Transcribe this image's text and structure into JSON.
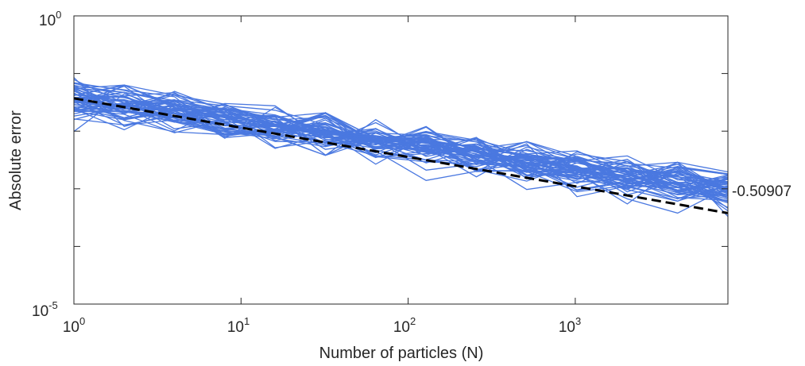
{
  "chart_data": {
    "type": "line",
    "xlabel": "Number of particles (N)",
    "ylabel": "Absolute error",
    "xscale": "log",
    "yscale": "log",
    "xlim": [
      1,
      8192
    ],
    "ylim": [
      1e-05,
      1
    ],
    "x": [
      1,
      2,
      4,
      8,
      16,
      32,
      64,
      128,
      256,
      512,
      1024,
      2048,
      4096,
      8192
    ],
    "xticks": [
      {
        "base": "10",
        "exp": "0",
        "value": 1
      },
      {
        "base": "10",
        "exp": "1",
        "value": 10
      },
      {
        "base": "10",
        "exp": "2",
        "value": 100
      },
      {
        "base": "10",
        "exp": "3",
        "value": 1000
      }
    ],
    "yticks": [
      {
        "base": "10",
        "exp": "0",
        "value": 1
      },
      {
        "base": "10",
        "exp": "-5",
        "value": 1e-05
      }
    ],
    "trial_series": {
      "color": "#4a78e0",
      "count": 60,
      "center_log10": [
        -1.43,
        -1.56,
        -1.67,
        -1.79,
        -1.92,
        -2.04,
        -2.16,
        -2.28,
        -2.42,
        -2.54,
        -2.66,
        -2.79,
        -2.9,
        -3.02
      ],
      "spread_log10": 0.36
    },
    "fit_line": {
      "color": "#000000",
      "style": "dashed",
      "slope": -0.50907,
      "log10_y_at_x1": -1.43,
      "label": "-0.50907"
    }
  }
}
